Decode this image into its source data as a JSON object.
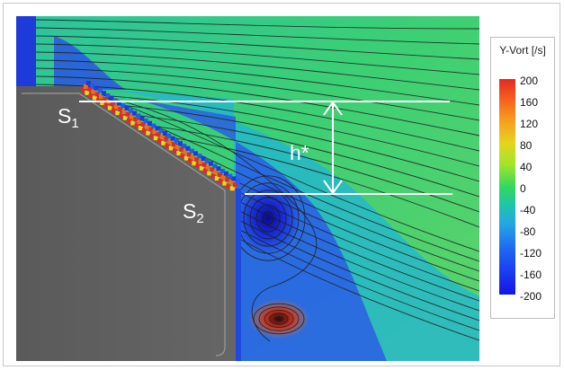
{
  "labels": {
    "s1_main": "S",
    "s1_sub": "1",
    "s2_main": "S",
    "s2_sub": "2",
    "h_star": "h*"
  },
  "legend": {
    "title": "Y-Vort [/s]",
    "ticks": [
      "200",
      "160",
      "120",
      "80",
      "40",
      "0",
      "-40",
      "-80",
      "-120",
      "-160",
      "-200"
    ]
  },
  "colors": {
    "background_flow": "#2fc86f",
    "solid_body": "#5e5e5e",
    "line_white": "#ffffff",
    "streamline": "#1b1b1b",
    "high_vorticity": "#e8281e",
    "low_vorticity": "#1414e6"
  }
}
